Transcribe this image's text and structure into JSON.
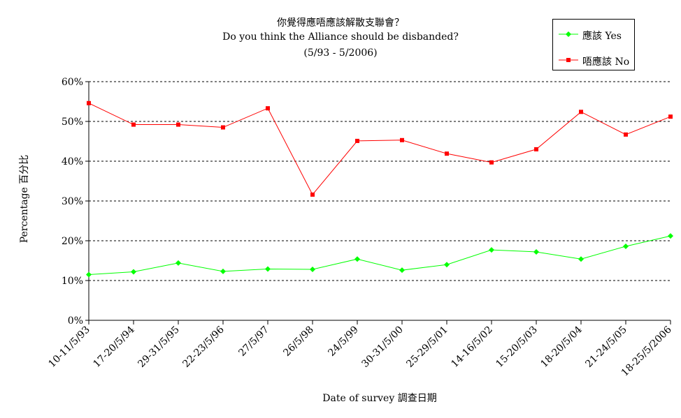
{
  "chart_data": {
    "type": "line",
    "title": "你覺得應唔應該解散支聯會？",
    "subtitle": "Do you think the Alliance should be disbanded?",
    "date_range": "(5/93 - 5/2006)",
    "xlabel": "Date of survey  調查日期",
    "ylabel": "Percentage  百分比",
    "ylim": [
      0,
      60
    ],
    "yticks": [
      "0%",
      "10%",
      "20%",
      "30%",
      "40%",
      "50%",
      "60%"
    ],
    "grid": true,
    "legend_position": "top-right",
    "categories": [
      "10-11/5/93",
      "17-20/5/94",
      "29-31/5/95",
      "22-23/5/96",
      "27/5/97",
      "26/5/98",
      "24/5/99",
      "30-31/5/00",
      "25-29/5/01",
      "14-16/5/02",
      "15-20/5/03",
      "18-20/5/04",
      "21-24/5/05",
      "18-25/5/2006"
    ],
    "series": [
      {
        "name": "應該 Yes",
        "color": "#00ff00",
        "marker": "diamond",
        "values": [
          11.5,
          12.2,
          14.4,
          12.3,
          12.9,
          12.8,
          15.4,
          12.6,
          14.0,
          17.7,
          17.2,
          15.4,
          18.6,
          21.2
        ]
      },
      {
        "name": "唔應該 No",
        "color": "#ff0000",
        "marker": "square",
        "values": [
          54.6,
          49.2,
          49.2,
          48.5,
          53.3,
          31.6,
          45.1,
          45.3,
          41.9,
          39.7,
          43.0,
          52.4,
          46.7,
          51.2
        ]
      }
    ]
  }
}
